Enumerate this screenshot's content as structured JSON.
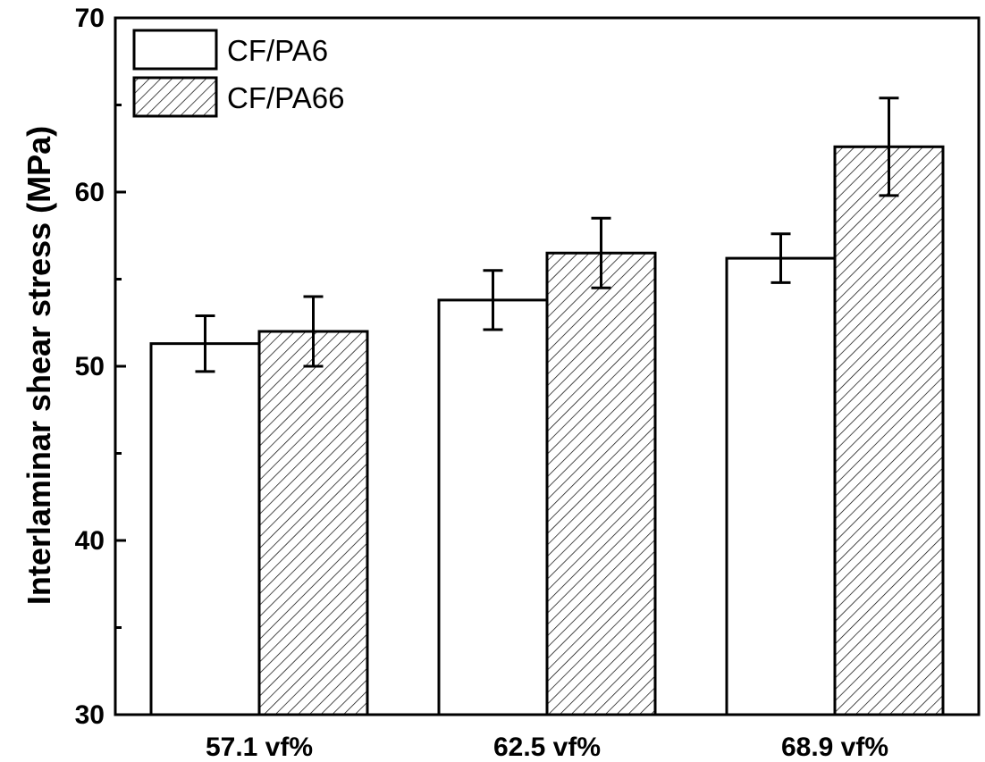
{
  "chart_data": {
    "type": "bar",
    "title": "",
    "xlabel": "",
    "ylabel": "Interlaminar shear stress (MPa)",
    "ylim": [
      30,
      70
    ],
    "yticks": [
      "30",
      "40",
      "50",
      "60",
      "70"
    ],
    "categories": [
      "57.1 vf%",
      "62.5 vf%",
      "68.9 vf%"
    ],
    "series": [
      {
        "name": "CF/PA6",
        "fill": "white",
        "values": [
          51.3,
          53.8,
          56.2
        ],
        "errors": [
          1.6,
          1.7,
          1.4
        ]
      },
      {
        "name": "CF/PA66",
        "fill": "hatched",
        "values": [
          52.0,
          56.5,
          62.6
        ],
        "errors": [
          2.0,
          2.0,
          2.8
        ]
      }
    ],
    "legend": {
      "position": "top-left"
    },
    "grid": false
  }
}
